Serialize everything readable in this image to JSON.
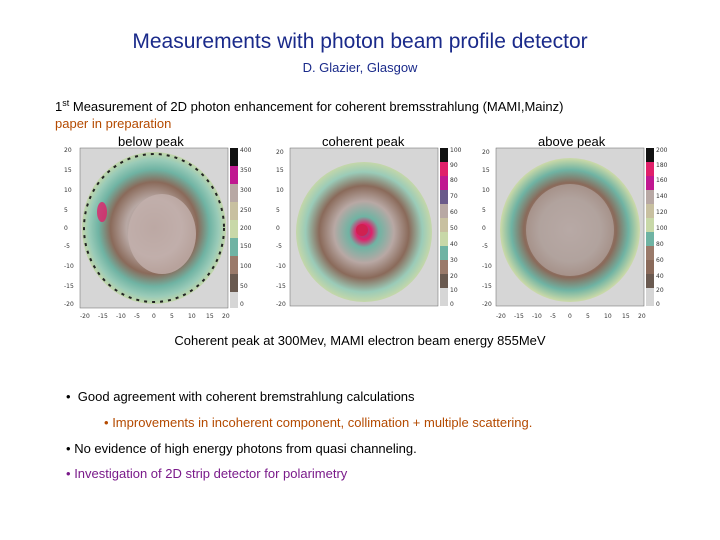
{
  "title": "Measurements with photon beam profile detector",
  "author": "D. Glazier,  Glasgow",
  "intro": {
    "line1_prefix": "1",
    "line1_sup": "st",
    "line1_rest": " Measurement of 2D photon enhancement for coherent bremsstrahlung (MAMI,Mainz)",
    "line2": "paper in preparation"
  },
  "plots": [
    {
      "label": "below peak",
      "scale": [
        "400",
        "350",
        "300",
        "250",
        "200",
        "150",
        "100",
        "50",
        "0"
      ]
    },
    {
      "label": "coherent peak",
      "scale": [
        "100",
        "90",
        "80",
        "70",
        "60",
        "50",
        "40",
        "30",
        "20",
        "10",
        "0"
      ]
    },
    {
      "label": "above peak",
      "scale": [
        "200",
        "180",
        "160",
        "140",
        "120",
        "100",
        "80",
        "60",
        "40",
        "20",
        "0"
      ]
    }
  ],
  "axis_ticks": {
    "y": [
      "20",
      "15",
      "10",
      "5",
      "0",
      "-5",
      "-10",
      "-15",
      "-20"
    ],
    "x": [
      "-20",
      "-15",
      "-10",
      "-5",
      "0",
      "5",
      "10",
      "15",
      "20"
    ]
  },
  "caption": "Coherent peak at 300Mev, MAMI electron beam energy 855MeV",
  "bullets": [
    {
      "symbol": "•",
      "text": "Good agreement with coherent bremstrahlung calculations"
    },
    {
      "symbol": "•",
      "text": "Improvements in incoherent component, collimation + multiple scattering."
    },
    {
      "symbol": "•",
      "text": "No evidence of high energy photons from quasi channeling."
    },
    {
      "symbol": "•",
      "text": "Investigation of 2D strip detector for polarimetry"
    }
  ],
  "colors": {
    "title": "#1a2a8a",
    "orange_text": "#b44a00",
    "purple_text": "#7a1a8a"
  }
}
